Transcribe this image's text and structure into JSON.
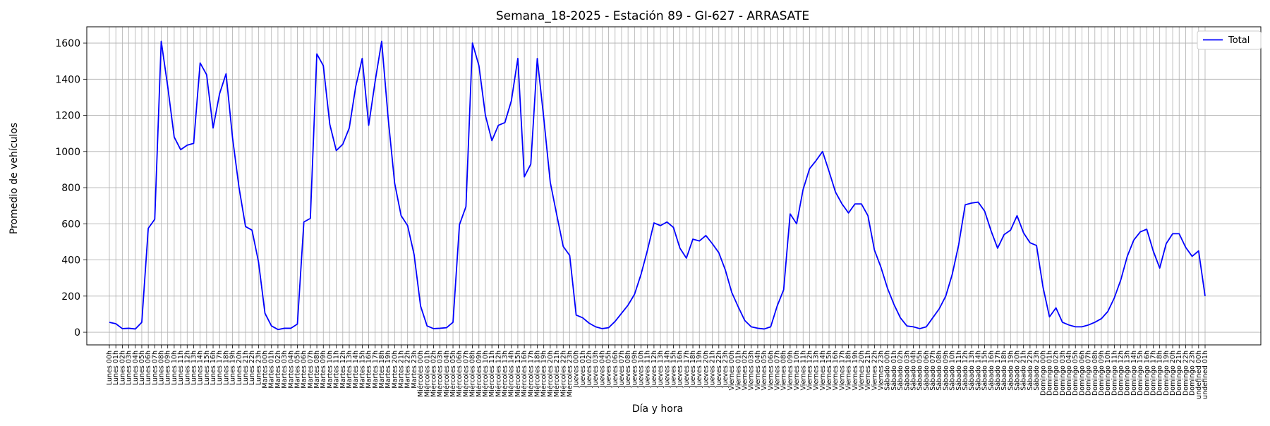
{
  "chart_data": {
    "type": "line",
    "title": "Semana_18-2025 - Estación 89 - GI-627  - ARRASATE",
    "xlabel": "Día y hora",
    "ylabel": "Promedio de vehículos",
    "ylim": [
      -70,
      1690
    ],
    "yticks": [
      0,
      200,
      400,
      600,
      800,
      1000,
      1200,
      1400,
      1600
    ],
    "grid": true,
    "legend": {
      "position": "top-right",
      "entries": [
        "Total"
      ]
    },
    "days": [
      "Lunes",
      "Martes",
      "Miércoles",
      "Jueves",
      "Viernes",
      "Sábado",
      "Domingo"
    ],
    "series": [
      {
        "name": "Total",
        "color": "#0000ff",
        "values": [
          55,
          47,
          20,
          22,
          18,
          55,
          575,
          625,
          1610,
          1360,
          1080,
          1010,
          1035,
          1045,
          1490,
          1425,
          1130,
          1320,
          1430,
          1075,
          800,
          585,
          565,
          390,
          105,
          35,
          15,
          22,
          22,
          45,
          610,
          630,
          1540,
          1475,
          1150,
          1005,
          1040,
          1130,
          1360,
          1515,
          1145,
          1390,
          1610,
          1185,
          825,
          645,
          590,
          430,
          145,
          35,
          20,
          22,
          25,
          55,
          595,
          695,
          1600,
          1475,
          1200,
          1060,
          1145,
          1160,
          1280,
          1515,
          860,
          930,
          1515,
          1185,
          830,
          650,
          475,
          425,
          95,
          80,
          50,
          30,
          20,
          25,
          60,
          105,
          150,
          210,
          320,
          455,
          605,
          590,
          610,
          580,
          465,
          410,
          515,
          505,
          535,
          490,
          440,
          345,
          220,
          140,
          65,
          30,
          22,
          18,
          30,
          145,
          235,
          655,
          600,
          790,
          905,
          950,
          1000,
          890,
          775,
          710,
          660,
          710,
          710,
          645,
          455,
          360,
          245,
          155,
          80,
          35,
          30,
          20,
          30,
          80,
          130,
          200,
          320,
          485,
          705,
          715,
          720,
          670,
          560,
          465,
          540,
          565,
          645,
          550,
          495,
          480,
          250,
          85,
          135,
          55,
          40,
          30,
          30,
          40,
          55,
          75,
          115,
          190,
          290,
          420,
          510,
          555,
          570,
          450,
          355,
          490,
          545,
          545,
          470,
          420,
          450,
          200
        ]
      }
    ]
  }
}
